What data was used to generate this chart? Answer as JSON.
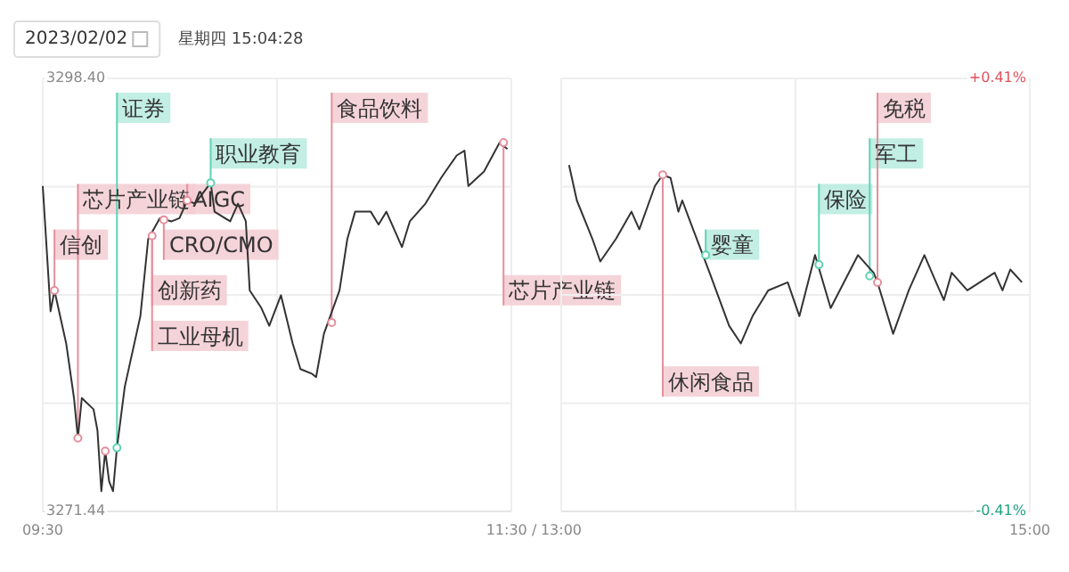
{
  "chart_data": [
    {
      "type": "line",
      "title": "2023/02/02",
      "subtitle": "星期四 15:04:28",
      "xlim": [
        "2023-02-02T09:30",
        "2023-02-02T11:30"
      ],
      "xticks": [
        {
          "value": "2023-02-02T09:30",
          "label": "09:30"
        },
        {
          "value": "2023-02-02T10:30",
          "label": null
        },
        {
          "value": "2023-02-02T11:30",
          "label": "11:30 /"
        }
      ],
      "ylim": [
        3271.44,
        3298.4
      ],
      "yticks": [
        {
          "value": 3271.44,
          "label": "3271.44"
        },
        {
          "value": 3278.18,
          "label": null
        },
        {
          "value": 3284.92,
          "label": null
        },
        {
          "value": 3291.66,
          "label": null
        },
        {
          "value": 3298.4,
          "label": "3298.40"
        }
      ],
      "grid": true,
      "series": [
        {
          "color": "#333333",
          "x": [
            "2023-02-02T09:30",
            "2023-02-02T09:32",
            "2023-02-02T09:33",
            "2023-02-02T09:36",
            "2023-02-02T09:38",
            "2023-02-02T09:39",
            "2023-02-02T09:40",
            "2023-02-02T09:43",
            "2023-02-02T09:44",
            "2023-02-02T09:45",
            "2023-02-02T09:46",
            "2023-02-02T09:47",
            "2023-02-02T09:48",
            "2023-02-02T09:49",
            "2023-02-02T09:51",
            "2023-02-02T09:55",
            "2023-02-02T09:57",
            "2023-02-02T10:00",
            "2023-02-02T10:03",
            "2023-02-02T10:05",
            "2023-02-02T10:07",
            "2023-02-02T10:09",
            "2023-02-02T10:13",
            "2023-02-02T10:14",
            "2023-02-02T10:18",
            "2023-02-02T10:20",
            "2023-02-02T10:22",
            "2023-02-02T10:23",
            "2023-02-02T10:26",
            "2023-02-02T10:28",
            "2023-02-02T10:31",
            "2023-02-02T10:34",
            "2023-02-02T10:36",
            "2023-02-02T10:39",
            "2023-02-02T10:40",
            "2023-02-02T10:42",
            "2023-02-02T10:46",
            "2023-02-02T10:48",
            "2023-02-02T10:50",
            "2023-02-02T10:54",
            "2023-02-02T10:56",
            "2023-02-02T10:58",
            "2023-02-02T11:02",
            "2023-02-02T11:04",
            "2023-02-02T11:08",
            "2023-02-02T11:12",
            "2023-02-02T11:16",
            "2023-02-02T11:18",
            "2023-02-02T11:19",
            "2023-02-02T11:23",
            "2023-02-02T11:27",
            "2023-02-02T11:29"
          ],
          "values": [
            3291.7,
            3283.9,
            3285.2,
            3281.9,
            3278.5,
            3276.0,
            3278.5,
            3277.8,
            3276.5,
            3272.7,
            3275.2,
            3273.3,
            3272.7,
            3275.4,
            3279.2,
            3283.6,
            3288.4,
            3289.7,
            3289.5,
            3289.7,
            3290.8,
            3290.6,
            3291.9,
            3290.1,
            3289.5,
            3290.6,
            3289.5,
            3285.2,
            3284.1,
            3283.0,
            3284.9,
            3281.9,
            3280.3,
            3280.0,
            3279.8,
            3282.5,
            3285.2,
            3288.4,
            3290.1,
            3290.1,
            3289.3,
            3290.1,
            3287.9,
            3289.5,
            3290.6,
            3292.2,
            3293.6,
            3293.9,
            3291.7,
            3292.6,
            3294.4,
            3294.0
          ]
        },
        {
          "type": "scatter",
          "color": "#e58f9b",
          "x": [
            "2023-02-02T09:33",
            "2023-02-02T09:39",
            "2023-02-02T09:46",
            "2023-02-02T09:58",
            "2023-02-02T10:01",
            "2023-02-02T10:07",
            "2023-02-02T10:44",
            "2023-02-02T11:28"
          ],
          "values": [
            3285.2,
            3276.0,
            3275.2,
            3288.6,
            3289.6,
            3290.8,
            3283.2,
            3294.4
          ]
        },
        {
          "type": "scatter",
          "color": "#5fd3b5",
          "x": [
            "2023-02-02T09:49",
            "2023-02-02T10:13"
          ],
          "values": [
            3275.4,
            3291.9
          ]
        }
      ],
      "annotations": [
        {
          "text": "信创",
          "x": "2023-02-02T09:33",
          "y": 3285.2
        },
        {
          "text": "芯片产业链",
          "x": "2023-02-02T09:39",
          "y": 3276.0
        },
        {
          "text": "证券",
          "x": "2023-02-02T09:49",
          "y": 3275.4
        },
        {
          "text": "职业教育",
          "x": "2023-02-02T10:13",
          "y": 3291.9
        },
        {
          "text": "AIGC",
          "x": "2023-02-02T10:07",
          "y": 3290.8
        },
        {
          "text": "CRO/CMO",
          "x": "2023-02-02T10:01",
          "y": 3289.6
        },
        {
          "text": "创新药",
          "x": "2023-02-02T09:58",
          "y": 3288.6
        },
        {
          "text": "工业母机",
          "x": "2023-02-02T09:58",
          "y": 3288.6
        },
        {
          "text": "食品饮料",
          "x": "2023-02-02T10:44",
          "y": 3283.2
        },
        {
          "text": "芯片产业链",
          "x": "2023-02-02T11:28",
          "y": 3294.4
        }
      ]
    },
    {
      "type": "line",
      "xlim": [
        "2023-02-02T13:00",
        "2023-02-02T15:00"
      ],
      "xticks": [
        {
          "value": "2023-02-02T13:00",
          "label": "13:00"
        },
        {
          "value": "2023-02-02T14:00",
          "label": null
        },
        {
          "value": "2023-02-02T15:00",
          "label": "15:00"
        }
      ],
      "ylim": [
        3271.44,
        3298.4
      ],
      "yticks": [
        {
          "value": 3271.44,
          "label": null
        },
        {
          "value": 3278.18,
          "label": null
        },
        {
          "value": 3284.92,
          "label": null
        },
        {
          "value": 3291.66,
          "label": null
        },
        {
          "value": 3298.4,
          "label": null
        }
      ],
      "tick_labels": "x",
      "y2lim": [
        -0.41,
        0.41
      ],
      "y2ticks": [
        {
          "value": 0.41,
          "label": "+0.41%"
        },
        {
          "value": -0.41,
          "label": "-0.41%"
        }
      ],
      "grid": true,
      "series": [
        {
          "color": "#333333",
          "x": [
            "2023-02-02T13:02",
            "2023-02-02T13:04",
            "2023-02-02T13:08",
            "2023-02-02T13:10",
            "2023-02-02T13:14",
            "2023-02-02T13:18",
            "2023-02-02T13:20",
            "2023-02-02T13:24",
            "2023-02-02T13:26",
            "2023-02-02T13:28",
            "2023-02-02T13:30",
            "2023-02-02T13:31",
            "2023-02-02T13:33",
            "2023-02-02T13:38",
            "2023-02-02T13:43",
            "2023-02-02T13:46",
            "2023-02-02T13:49",
            "2023-02-02T13:53",
            "2023-02-02T13:58",
            "2023-02-02T14:01",
            "2023-02-02T14:05",
            "2023-02-02T14:09",
            "2023-02-02T14:16",
            "2023-02-02T14:20",
            "2023-02-02T14:21",
            "2023-02-02T14:25",
            "2023-02-02T14:29",
            "2023-02-02T14:33",
            "2023-02-02T14:36",
            "2023-02-02T14:38",
            "2023-02-02T14:40",
            "2023-02-02T14:44",
            "2023-02-02T14:51",
            "2023-02-02T14:53",
            "2023-02-02T14:55",
            "2023-02-02T14:58"
          ],
          "values": [
            3293.0,
            3290.8,
            3288.4,
            3287.0,
            3288.4,
            3290.1,
            3289.0,
            3291.7,
            3292.4,
            3292.2,
            3290.1,
            3290.8,
            3289.5,
            3286.3,
            3283.0,
            3281.9,
            3283.6,
            3285.2,
            3285.7,
            3283.6,
            3287.4,
            3284.1,
            3287.4,
            3286.3,
            3285.7,
            3282.5,
            3285.2,
            3287.4,
            3285.7,
            3284.6,
            3286.3,
            3285.2,
            3286.3,
            3285.2,
            3286.5,
            3285.7
          ]
        },
        {
          "type": "scatter",
          "color": "#e58f9b",
          "x": [
            "2023-02-02T13:26",
            "2023-02-02T14:21"
          ],
          "values": [
            3292.4,
            3285.7
          ]
        },
        {
          "type": "scatter",
          "color": "#5fd3b5",
          "x": [
            "2023-02-02T13:37",
            "2023-02-02T14:06",
            "2023-02-02T14:19"
          ],
          "values": [
            3287.4,
            3286.8,
            3286.1
          ]
        }
      ],
      "annotations": [
        {
          "text": "休闲食品",
          "x": "2023-02-02T13:26",
          "y": 3292.4
        },
        {
          "text": "婴童",
          "x": "2023-02-02T13:37",
          "y": 3287.4
        },
        {
          "text": "保险",
          "x": "2023-02-02T14:06",
          "y": 3286.8
        },
        {
          "text": "军工",
          "x": "2023-02-02T14:19",
          "y": 3286.1
        },
        {
          "text": "免税",
          "x": "2023-02-02T14:21",
          "y": 3285.7
        }
      ]
    }
  ]
}
